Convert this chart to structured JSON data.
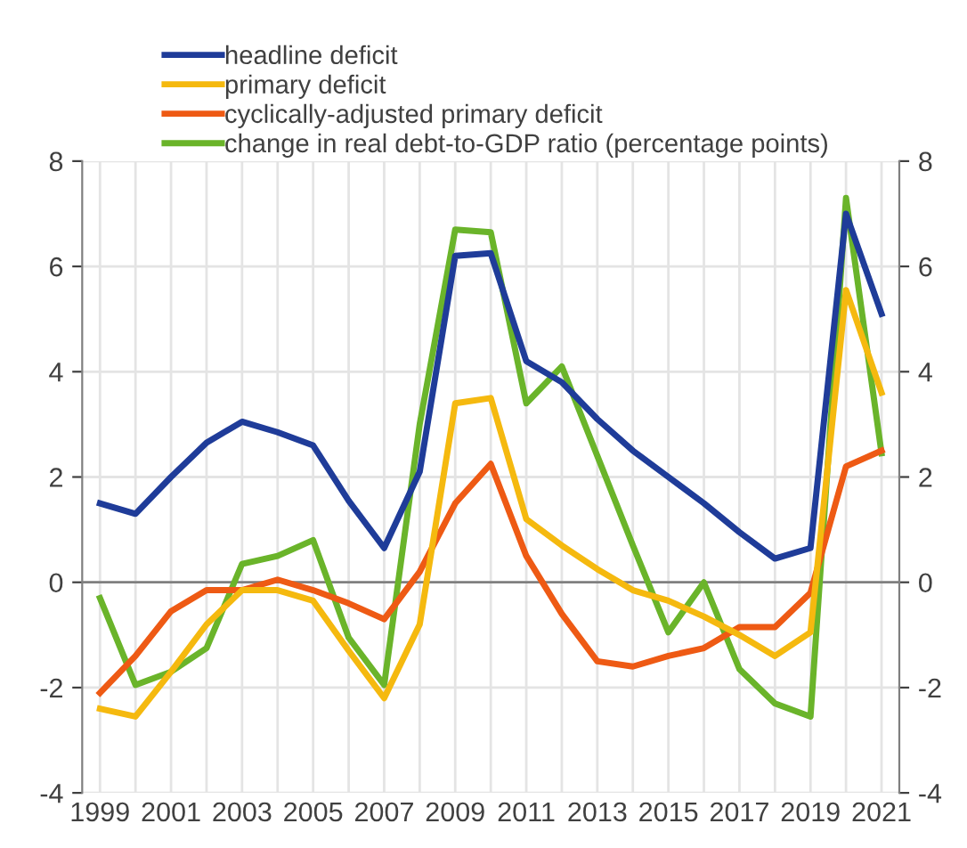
{
  "chart_data": {
    "type": "line",
    "x": [
      1999,
      2000,
      2001,
      2002,
      2003,
      2004,
      2005,
      2006,
      2007,
      2008,
      2009,
      2010,
      2011,
      2012,
      2013,
      2014,
      2015,
      2016,
      2017,
      2018,
      2019,
      2020,
      2021
    ],
    "series": [
      {
        "name": "headline deficit",
        "color": "#1f3c99",
        "values": [
          1.5,
          1.3,
          2.0,
          2.65,
          3.05,
          2.85,
          2.6,
          1.55,
          0.65,
          2.1,
          6.2,
          6.25,
          4.2,
          3.8,
          3.1,
          2.5,
          2.0,
          1.5,
          0.95,
          0.45,
          0.65,
          7.0,
          5.1
        ]
      },
      {
        "name": "primary deficit",
        "color": "#f5b90f",
        "values": [
          -2.4,
          -2.55,
          -1.7,
          -0.8,
          -0.15,
          -0.15,
          -0.35,
          -1.3,
          -2.2,
          -0.8,
          3.4,
          3.5,
          1.2,
          0.7,
          0.25,
          -0.15,
          -0.35,
          -0.65,
          -1.0,
          -1.4,
          -0.95,
          5.55,
          3.6
        ]
      },
      {
        "name": "cyclically-adjusted primary deficit",
        "color": "#ee5a14",
        "values": [
          -2.1,
          -1.4,
          -0.55,
          -0.15,
          -0.15,
          0.05,
          -0.15,
          -0.4,
          -0.7,
          0.2,
          1.5,
          2.25,
          0.5,
          -0.6,
          -1.5,
          -1.6,
          -1.4,
          -1.25,
          -0.85,
          -0.85,
          -0.2,
          2.2,
          2.5
        ]
      },
      {
        "name": "change in real debt-to-GDP ratio (percentage points)",
        "color": "#6ab42a",
        "values": [
          -0.3,
          -1.95,
          -1.7,
          -1.25,
          0.35,
          0.5,
          0.8,
          -1.05,
          -1.95,
          3.0,
          6.7,
          6.65,
          3.4,
          4.1,
          2.4,
          0.7,
          -0.95,
          0.0,
          -1.65,
          -2.3,
          -2.55,
          7.3,
          2.45
        ]
      }
    ],
    "xlim": [
      1998.5,
      2021.5
    ],
    "xticks": [
      1999,
      {
        "value": 2000,
        "label": null
      },
      2001,
      {
        "value": 2002,
        "label": null
      },
      2003,
      {
        "value": 2004,
        "label": null
      },
      2005,
      {
        "value": 2006,
        "label": null
      },
      2007,
      {
        "value": 2008,
        "label": null
      },
      2009,
      {
        "value": 2010,
        "label": null
      },
      2011,
      {
        "value": 2012,
        "label": null
      },
      2013,
      {
        "value": 2014,
        "label": null
      },
      2015,
      {
        "value": 2016,
        "label": null
      },
      2017,
      {
        "value": 2018,
        "label": null
      },
      2019,
      {
        "value": 2020,
        "label": null
      },
      2021
    ],
    "ylim": [
      -4,
      8
    ],
    "yticks": [
      -4,
      -2,
      0,
      2,
      4,
      6,
      8
    ],
    "y2lim": [
      -4,
      8
    ],
    "y2ticks": [
      -4,
      -2,
      0,
      2,
      4,
      6,
      8
    ],
    "ref_lines": [
      {
        "axis": "y",
        "value": 0,
        "color": "#808080"
      }
    ],
    "grid": true,
    "legend": "top",
    "marker": "none",
    "line_style": "solid"
  }
}
